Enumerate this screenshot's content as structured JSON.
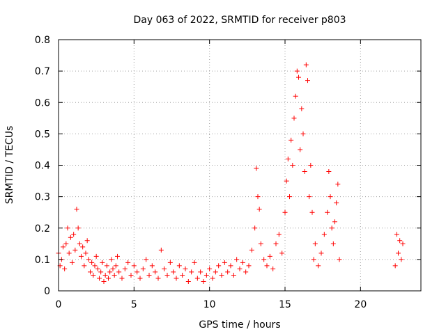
{
  "chart_data": {
    "type": "scatter",
    "title": "Day 063 of 2022, SRMTID for receiver p803",
    "xlabel": "GPS time / hours",
    "ylabel": "SRMTID / TECUs",
    "xlim": [
      0,
      24
    ],
    "ylim": [
      0,
      0.8
    ],
    "x_ticks": [
      0,
      5,
      10,
      15,
      20
    ],
    "x_tick_labels": [
      "0",
      "5",
      "10",
      "15",
      "20"
    ],
    "y_ticks": [
      0,
      0.1,
      0.2,
      0.3,
      0.4,
      0.5,
      0.6,
      0.7,
      0.8
    ],
    "y_tick_labels": [
      "0",
      "0.1",
      "0.2",
      "0.3",
      "0.4",
      "0.5",
      "0.6",
      "0.7",
      "0.8"
    ],
    "grid": true,
    "marker": "+",
    "color": "#ff0000",
    "series": [
      {
        "name": "SRMTID",
        "points": [
          [
            0.0,
            0.12
          ],
          [
            0.1,
            0.08
          ],
          [
            0.2,
            0.1
          ],
          [
            0.3,
            0.14
          ],
          [
            0.4,
            0.07
          ],
          [
            0.5,
            0.15
          ],
          [
            0.6,
            0.2
          ],
          [
            0.7,
            0.12
          ],
          [
            0.8,
            0.17
          ],
          [
            0.9,
            0.09
          ],
          [
            1.0,
            0.18
          ],
          [
            1.1,
            0.13
          ],
          [
            1.2,
            0.26
          ],
          [
            1.3,
            0.2
          ],
          [
            1.4,
            0.15
          ],
          [
            1.5,
            0.11
          ],
          [
            1.6,
            0.14
          ],
          [
            1.7,
            0.08
          ],
          [
            1.8,
            0.12
          ],
          [
            1.9,
            0.16
          ],
          [
            2.0,
            0.1
          ],
          [
            2.1,
            0.06
          ],
          [
            2.2,
            0.09
          ],
          [
            2.3,
            0.05
          ],
          [
            2.4,
            0.08
          ],
          [
            2.5,
            0.11
          ],
          [
            2.6,
            0.07
          ],
          [
            2.7,
            0.04
          ],
          [
            2.8,
            0.06
          ],
          [
            2.9,
            0.09
          ],
          [
            3.0,
            0.03
          ],
          [
            3.1,
            0.05
          ],
          [
            3.2,
            0.08
          ],
          [
            3.3,
            0.04
          ],
          [
            3.4,
            0.06
          ],
          [
            3.5,
            0.1
          ],
          [
            3.6,
            0.07
          ],
          [
            3.7,
            0.05
          ],
          [
            3.8,
            0.08
          ],
          [
            3.9,
            0.11
          ],
          [
            4.0,
            0.06
          ],
          [
            4.2,
            0.04
          ],
          [
            4.4,
            0.07
          ],
          [
            4.6,
            0.09
          ],
          [
            4.8,
            0.05
          ],
          [
            5.0,
            0.08
          ],
          [
            5.2,
            0.06
          ],
          [
            5.4,
            0.04
          ],
          [
            5.6,
            0.07
          ],
          [
            5.8,
            0.1
          ],
          [
            6.0,
            0.05
          ],
          [
            6.2,
            0.08
          ],
          [
            6.4,
            0.06
          ],
          [
            6.6,
            0.04
          ],
          [
            6.8,
            0.13
          ],
          [
            7.0,
            0.07
          ],
          [
            7.2,
            0.05
          ],
          [
            7.4,
            0.09
          ],
          [
            7.6,
            0.06
          ],
          [
            7.8,
            0.04
          ],
          [
            8.0,
            0.08
          ],
          [
            8.2,
            0.05
          ],
          [
            8.4,
            0.07
          ],
          [
            8.6,
            0.03
          ],
          [
            8.8,
            0.06
          ],
          [
            9.0,
            0.09
          ],
          [
            9.2,
            0.04
          ],
          [
            9.4,
            0.06
          ],
          [
            9.6,
            0.03
          ],
          [
            9.8,
            0.05
          ],
          [
            10.0,
            0.07
          ],
          [
            10.2,
            0.04
          ],
          [
            10.4,
            0.06
          ],
          [
            10.6,
            0.08
          ],
          [
            10.8,
            0.05
          ],
          [
            11.0,
            0.09
          ],
          [
            11.2,
            0.06
          ],
          [
            11.4,
            0.08
          ],
          [
            11.6,
            0.05
          ],
          [
            11.8,
            0.1
          ],
          [
            12.0,
            0.07
          ],
          [
            12.2,
            0.09
          ],
          [
            12.4,
            0.06
          ],
          [
            12.6,
            0.08
          ],
          [
            12.8,
            0.13
          ],
          [
            13.0,
            0.2
          ],
          [
            13.1,
            0.39
          ],
          [
            13.2,
            0.3
          ],
          [
            13.3,
            0.26
          ],
          [
            13.4,
            0.15
          ],
          [
            13.6,
            0.1
          ],
          [
            13.8,
            0.08
          ],
          [
            14.0,
            0.11
          ],
          [
            14.2,
            0.07
          ],
          [
            14.4,
            0.15
          ],
          [
            14.6,
            0.18
          ],
          [
            14.8,
            0.12
          ],
          [
            15.0,
            0.25
          ],
          [
            15.1,
            0.35
          ],
          [
            15.2,
            0.42
          ],
          [
            15.3,
            0.3
          ],
          [
            15.4,
            0.48
          ],
          [
            15.5,
            0.4
          ],
          [
            15.6,
            0.55
          ],
          [
            15.7,
            0.62
          ],
          [
            15.8,
            0.7
          ],
          [
            15.9,
            0.68
          ],
          [
            16.0,
            0.45
          ],
          [
            16.1,
            0.58
          ],
          [
            16.2,
            0.5
          ],
          [
            16.3,
            0.38
          ],
          [
            16.4,
            0.72
          ],
          [
            16.5,
            0.67
          ],
          [
            16.6,
            0.3
          ],
          [
            16.7,
            0.4
          ],
          [
            16.8,
            0.25
          ],
          [
            16.9,
            0.1
          ],
          [
            17.0,
            0.15
          ],
          [
            17.2,
            0.08
          ],
          [
            17.4,
            0.12
          ],
          [
            17.6,
            0.18
          ],
          [
            17.8,
            0.25
          ],
          [
            17.9,
            0.38
          ],
          [
            18.0,
            0.3
          ],
          [
            18.1,
            0.2
          ],
          [
            18.2,
            0.15
          ],
          [
            18.3,
            0.22
          ],
          [
            18.4,
            0.28
          ],
          [
            18.5,
            0.34
          ],
          [
            18.6,
            0.1
          ],
          [
            22.3,
            0.08
          ],
          [
            22.4,
            0.18
          ],
          [
            22.5,
            0.12
          ],
          [
            22.6,
            0.16
          ],
          [
            22.7,
            0.1
          ],
          [
            22.8,
            0.15
          ]
        ]
      }
    ]
  }
}
